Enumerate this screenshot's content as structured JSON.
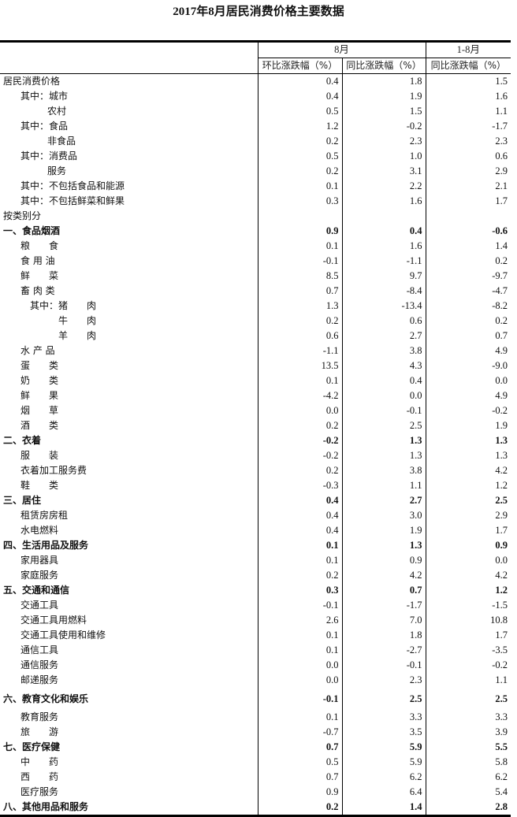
{
  "title": "2017年8月居民消费价格主要数据",
  "header": {
    "group_month": "8月",
    "group_ytd": "1-8月",
    "col_mom": "环比涨跌幅（%）",
    "col_yoy": "同比涨跌幅（%）",
    "col_ytd_yoy": "同比涨跌幅（%）"
  },
  "rows": [
    {
      "label": "居民消费价格",
      "indent": 0,
      "bold": false,
      "mom": "0.4",
      "yoy": "1.8",
      "ytd": "1.5"
    },
    {
      "label": "其中：城市",
      "indent": 1,
      "bold": false,
      "mom": "0.4",
      "yoy": "1.9",
      "ytd": "1.6"
    },
    {
      "label": "农村",
      "indent": 3,
      "bold": false,
      "mom": "0.5",
      "yoy": "1.5",
      "ytd": "1.1"
    },
    {
      "label": "其中：食品",
      "indent": 1,
      "bold": false,
      "mom": "1.2",
      "yoy": "-0.2",
      "ytd": "-1.7"
    },
    {
      "label": "非食品",
      "indent": 3,
      "bold": false,
      "mom": "0.2",
      "yoy": "2.3",
      "ytd": "2.3"
    },
    {
      "label": "其中：消费品",
      "indent": 1,
      "bold": false,
      "mom": "0.5",
      "yoy": "1.0",
      "ytd": "0.6"
    },
    {
      "label": "服务",
      "indent": 3,
      "bold": false,
      "mom": "0.2",
      "yoy": "3.1",
      "ytd": "2.9"
    },
    {
      "label": "其中：不包括食品和能源",
      "indent": 1,
      "bold": false,
      "mom": "0.1",
      "yoy": "2.2",
      "ytd": "2.1"
    },
    {
      "label": "其中：不包括鲜菜和鲜果",
      "indent": 1,
      "bold": false,
      "mom": "0.3",
      "yoy": "1.6",
      "ytd": "1.7"
    },
    {
      "label": "按类别分",
      "indent": 0,
      "bold": false,
      "mom": "",
      "yoy": "",
      "ytd": ""
    },
    {
      "label": "一、食品烟酒",
      "indent": 0,
      "bold": true,
      "mom": "0.9",
      "yoy": "0.4",
      "ytd": "-0.6"
    },
    {
      "label": "粮　　食",
      "indent": 1,
      "bold": false,
      "mom": "0.1",
      "yoy": "1.6",
      "ytd": "1.4"
    },
    {
      "label": "食 用 油",
      "indent": 1,
      "bold": false,
      "mom": "-0.1",
      "yoy": "-1.1",
      "ytd": "0.2"
    },
    {
      "label": "鲜　　菜",
      "indent": 1,
      "bold": false,
      "mom": "8.5",
      "yoy": "9.7",
      "ytd": "-9.7"
    },
    {
      "label": "畜 肉 类",
      "indent": 1,
      "bold": false,
      "mom": "0.7",
      "yoy": "-8.4",
      "ytd": "-4.7"
    },
    {
      "label": "其中：猪　　肉",
      "indent": 2,
      "bold": false,
      "mom": "1.3",
      "yoy": "-13.4",
      "ytd": "-8.2"
    },
    {
      "label": "牛　　肉",
      "indent": 4,
      "bold": false,
      "mom": "0.2",
      "yoy": "0.6",
      "ytd": "0.2"
    },
    {
      "label": "羊　　肉",
      "indent": 4,
      "bold": false,
      "mom": "0.6",
      "yoy": "2.7",
      "ytd": "0.7"
    },
    {
      "label": "水 产 品",
      "indent": 1,
      "bold": false,
      "mom": "-1.1",
      "yoy": "3.8",
      "ytd": "4.9"
    },
    {
      "label": "蛋　　类",
      "indent": 1,
      "bold": false,
      "mom": "13.5",
      "yoy": "4.3",
      "ytd": "-9.0"
    },
    {
      "label": "奶　　类",
      "indent": 1,
      "bold": false,
      "mom": "0.1",
      "yoy": "0.4",
      "ytd": "0.0"
    },
    {
      "label": "鲜　　果",
      "indent": 1,
      "bold": false,
      "mom": "-4.2",
      "yoy": "0.0",
      "ytd": "4.9"
    },
    {
      "label": "烟　　草",
      "indent": 1,
      "bold": false,
      "mom": "0.0",
      "yoy": "-0.1",
      "ytd": "-0.2"
    },
    {
      "label": "酒　　类",
      "indent": 1,
      "bold": false,
      "mom": "0.2",
      "yoy": "2.5",
      "ytd": "1.9"
    },
    {
      "label": "二、衣着",
      "indent": 0,
      "bold": true,
      "mom": "-0.2",
      "yoy": "1.3",
      "ytd": "1.3"
    },
    {
      "label": "服　　装",
      "indent": 1,
      "bold": false,
      "mom": "-0.2",
      "yoy": "1.3",
      "ytd": "1.3"
    },
    {
      "label": "衣着加工服务费",
      "indent": 1,
      "bold": false,
      "mom": "0.2",
      "yoy": "3.8",
      "ytd": "4.2"
    },
    {
      "label": "鞋　　类",
      "indent": 1,
      "bold": false,
      "mom": "-0.3",
      "yoy": "1.1",
      "ytd": "1.2"
    },
    {
      "label": "三、居住",
      "indent": 0,
      "bold": true,
      "mom": "0.4",
      "yoy": "2.7",
      "ytd": "2.5"
    },
    {
      "label": "租赁房房租",
      "indent": 1,
      "bold": false,
      "mom": "0.4",
      "yoy": "3.0",
      "ytd": "2.9"
    },
    {
      "label": "水电燃料",
      "indent": 1,
      "bold": false,
      "mom": "0.4",
      "yoy": "1.9",
      "ytd": "1.7"
    },
    {
      "label": "四、生活用品及服务",
      "indent": 0,
      "bold": true,
      "mom": "0.1",
      "yoy": "1.3",
      "ytd": "0.9"
    },
    {
      "label": "家用器具",
      "indent": 1,
      "bold": false,
      "mom": "0.1",
      "yoy": "0.9",
      "ytd": "0.0"
    },
    {
      "label": "家庭服务",
      "indent": 1,
      "bold": false,
      "mom": "0.2",
      "yoy": "4.2",
      "ytd": "4.2"
    },
    {
      "label": "五、交通和通信",
      "indent": 0,
      "bold": true,
      "mom": "0.3",
      "yoy": "0.7",
      "ytd": "1.2"
    },
    {
      "label": "交通工具",
      "indent": 1,
      "bold": false,
      "mom": "-0.1",
      "yoy": "-1.7",
      "ytd": "-1.5"
    },
    {
      "label": "交通工具用燃料",
      "indent": 1,
      "bold": false,
      "mom": "2.6",
      "yoy": "7.0",
      "ytd": "10.8"
    },
    {
      "label": "交通工具使用和维修",
      "indent": 1,
      "bold": false,
      "mom": "0.1",
      "yoy": "1.8",
      "ytd": "1.7"
    },
    {
      "label": "通信工具",
      "indent": 1,
      "bold": false,
      "mom": "0.1",
      "yoy": "-2.7",
      "ytd": "-3.5"
    },
    {
      "label": "通信服务",
      "indent": 1,
      "bold": false,
      "mom": "0.0",
      "yoy": "-0.1",
      "ytd": "-0.2"
    },
    {
      "label": "邮递服务",
      "indent": 1,
      "bold": false,
      "mom": "0.0",
      "yoy": "2.3",
      "ytd": "1.1"
    },
    {
      "label": "六、教育文化和娱乐",
      "indent": 0,
      "bold": true,
      "gap": true,
      "mom": "-0.1",
      "yoy": "2.5",
      "ytd": "2.5"
    },
    {
      "label": "教育服务",
      "indent": 1,
      "bold": false,
      "mom": "0.1",
      "yoy": "3.3",
      "ytd": "3.3"
    },
    {
      "label": "旅　　游",
      "indent": 1,
      "bold": false,
      "mom": "-0.7",
      "yoy": "3.5",
      "ytd": "3.9"
    },
    {
      "label": "七、医疗保健",
      "indent": 0,
      "bold": true,
      "mom": "0.7",
      "yoy": "5.9",
      "ytd": "5.5"
    },
    {
      "label": "中　　药",
      "indent": 1,
      "bold": false,
      "mom": "0.5",
      "yoy": "5.9",
      "ytd": "5.8"
    },
    {
      "label": "西　　药",
      "indent": 1,
      "bold": false,
      "mom": "0.7",
      "yoy": "6.2",
      "ytd": "6.2"
    },
    {
      "label": "医疗服务",
      "indent": 1,
      "bold": false,
      "mom": "0.9",
      "yoy": "6.4",
      "ytd": "5.4"
    },
    {
      "label": "八、其他用品和服务",
      "indent": 0,
      "bold": true,
      "mom": "0.2",
      "yoy": "1.4",
      "ytd": "2.8"
    }
  ]
}
